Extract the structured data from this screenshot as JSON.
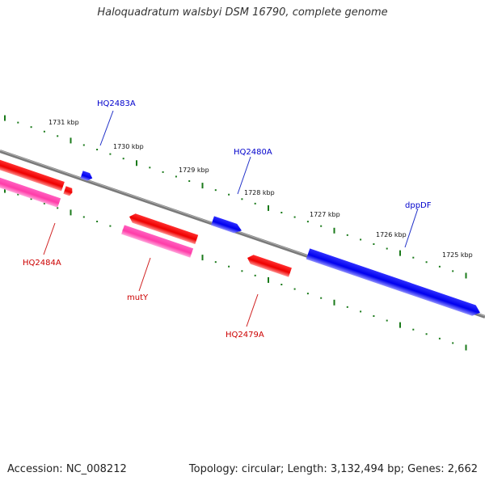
{
  "title": "Haloquadratum walsbyi DSM 16790, complete genome",
  "footer": {
    "accession": "Accession: NC_008212",
    "summary": "Topology: circular; Length: 3,132,494 bp; Genes: 2,662"
  },
  "colors": {
    "backbone": "#808080",
    "tick": "#1a7a1a",
    "gene_forward": "#0000ee",
    "gene_reverse": "#ee0000",
    "gene_reverse_alt": "#ff3ca8",
    "label_forward": "#0000cc",
    "label_reverse": "#cc0000"
  },
  "scale_labels": [
    "1731 kbp",
    "1730 kbp",
    "1729 kbp",
    "1728 kbp",
    "1727 kbp",
    "1726 kbp",
    "1725 kbp"
  ],
  "gene_labels": [
    {
      "name": "HQ2483A",
      "strand": "forward"
    },
    {
      "name": "HQ2480A",
      "strand": "forward"
    },
    {
      "name": "dppDF",
      "strand": "forward"
    },
    {
      "name": "HQ2484A",
      "strand": "reverse"
    },
    {
      "name": "mutY",
      "strand": "reverse"
    },
    {
      "name": "HQ2479A",
      "strand": "reverse"
    }
  ]
}
